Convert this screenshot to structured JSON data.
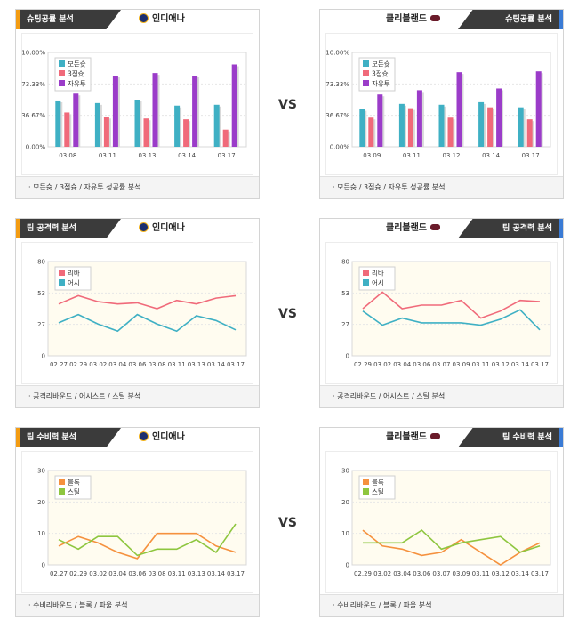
{
  "vs_label": "VS",
  "colors": {
    "accent_orange": "#f39c12",
    "accent_blue": "#3a7bd5",
    "tab_bg": "#3b3b3b"
  },
  "teams": {
    "home": "인디애나",
    "away": "클리블랜드"
  },
  "sections": [
    {
      "id": "shooting",
      "title": "슈팅공률 분석",
      "footer": "· 모든슛 / 3점슛 / 자유투 성공률 분석",
      "charts": [
        {
          "side": "left",
          "team": "인디애나",
          "chart_data": {
            "type": "bar",
            "categories": [
              "03.08",
              "03.11",
              "03.13",
              "03.14",
              "03.17"
            ],
            "yticks": [
              "110.00%",
              "73.33%",
              "36.67%",
              "0.00%"
            ],
            "ylim": [
              0,
              110
            ],
            "legend": [
              "모든슛",
              "3점슛",
              "자유투"
            ],
            "series": [
              {
                "name": "모든슛",
                "color": "#3fb0c4",
                "values": [
                  54,
                  51,
                  55,
                  48,
                  49
                ]
              },
              {
                "name": "3점슛",
                "color": "#f06a7a",
                "values": [
                  40,
                  35,
                  33,
                  32,
                  20
                ]
              },
              {
                "name": "자유투",
                "color": "#9b3cc9",
                "values": [
                  62,
                  83,
                  86,
                  83,
                  96
                ]
              }
            ]
          }
        },
        {
          "side": "right",
          "team": "클리블랜드",
          "chart_data": {
            "type": "bar",
            "categories": [
              "03.09",
              "03.11",
              "03.12",
              "03.14",
              "03.17"
            ],
            "yticks": [
              "110.00%",
              "73.33%",
              "36.67%",
              "0.00%"
            ],
            "ylim": [
              0,
              110
            ],
            "legend": [
              "모든슛",
              "3점슛",
              "자유투"
            ],
            "series": [
              {
                "name": "모든슛",
                "color": "#3fb0c4",
                "values": [
                  44,
                  50,
                  49,
                  52,
                  46
                ]
              },
              {
                "name": "3점슛",
                "color": "#f06a7a",
                "values": [
                  34,
                  45,
                  34,
                  46,
                  32
                ]
              },
              {
                "name": "자유투",
                "color": "#9b3cc9",
                "values": [
                  61,
                  66,
                  87,
                  68,
                  88
                ]
              }
            ]
          }
        }
      ]
    },
    {
      "id": "offense",
      "title": "팀 공격력 분석",
      "footer": "· 공격리바운드 / 어시스트 / 스틸 분석",
      "charts": [
        {
          "side": "left",
          "team": "인디애나",
          "chart_data": {
            "type": "line",
            "categories": [
              "02.27",
              "02.29",
              "03.02",
              "03.04",
              "03.06",
              "03.08",
              "03.11",
              "03.13",
              "03.14",
              "03.17"
            ],
            "yticks": [
              "80",
              "53",
              "27",
              "0"
            ],
            "ylim": [
              0,
              80
            ],
            "legend": [
              "리바",
              "어시"
            ],
            "series": [
              {
                "name": "리바",
                "color": "#f06a7a",
                "values": [
                  44,
                  51,
                  46,
                  44,
                  45,
                  40,
                  47,
                  44,
                  49,
                  51
                ]
              },
              {
                "name": "어시",
                "color": "#3fb0c4",
                "values": [
                  28,
                  35,
                  27,
                  21,
                  35,
                  27,
                  21,
                  34,
                  30,
                  22
                ]
              }
            ]
          }
        },
        {
          "side": "right",
          "team": "클리블랜드",
          "chart_data": {
            "type": "line",
            "categories": [
              "02.29",
              "03.02",
              "03.04",
              "03.06",
              "03.07",
              "03.09",
              "03.11",
              "03.12",
              "03.14",
              "03.17"
            ],
            "yticks": [
              "80",
              "53",
              "27",
              "0"
            ],
            "ylim": [
              0,
              80
            ],
            "legend": [
              "리바",
              "어시"
            ],
            "series": [
              {
                "name": "리바",
                "color": "#f06a7a",
                "values": [
                  40,
                  54,
                  40,
                  43,
                  43,
                  47,
                  32,
                  38,
                  47,
                  46
                ]
              },
              {
                "name": "어시",
                "color": "#3fb0c4",
                "values": [
                  38,
                  26,
                  32,
                  28,
                  28,
                  28,
                  26,
                  31,
                  39,
                  22
                ]
              }
            ]
          }
        }
      ]
    },
    {
      "id": "defense",
      "title": "팀 수비력 분석",
      "footer": "· 수비리바운드 / 블록 / 파울 분석",
      "charts": [
        {
          "side": "left",
          "team": "인디애나",
          "chart_data": {
            "type": "line",
            "categories": [
              "02.27",
              "02.29",
              "03.02",
              "03.04",
              "03.06",
              "03.08",
              "03.11",
              "03.13",
              "03.14",
              "03.17"
            ],
            "yticks": [
              "30",
              "20",
              "10",
              "0"
            ],
            "ylim": [
              0,
              30
            ],
            "legend": [
              "블록",
              "스틸"
            ],
            "series": [
              {
                "name": "블록",
                "color": "#f5913e",
                "values": [
                  6,
                  9,
                  7,
                  4,
                  2,
                  10,
                  10,
                  10,
                  6,
                  4
                ]
              },
              {
                "name": "스틸",
                "color": "#8ec63f",
                "values": [
                  8,
                  5,
                  9,
                  9,
                  3,
                  5,
                  5,
                  8,
                  4,
                  13
                ]
              }
            ]
          }
        },
        {
          "side": "right",
          "team": "클리블랜드",
          "chart_data": {
            "type": "line",
            "categories": [
              "02.29",
              "03.02",
              "03.04",
              "03.06",
              "03.07",
              "03.09",
              "03.11",
              "03.12",
              "03.14",
              "03.17"
            ],
            "yticks": [
              "30",
              "20",
              "10",
              "0"
            ],
            "ylim": [
              0,
              30
            ],
            "legend": [
              "블록",
              "스틸"
            ],
            "series": [
              {
                "name": "블록",
                "color": "#f5913e",
                "values": [
                  11,
                  6,
                  5,
                  3,
                  4,
                  8,
                  4,
                  0,
                  4,
                  7
                ]
              },
              {
                "name": "스틸",
                "color": "#8ec63f",
                "values": [
                  7,
                  7,
                  7,
                  11,
                  5,
                  7,
                  8,
                  9,
                  4,
                  6
                ]
              }
            ]
          }
        }
      ]
    }
  ]
}
